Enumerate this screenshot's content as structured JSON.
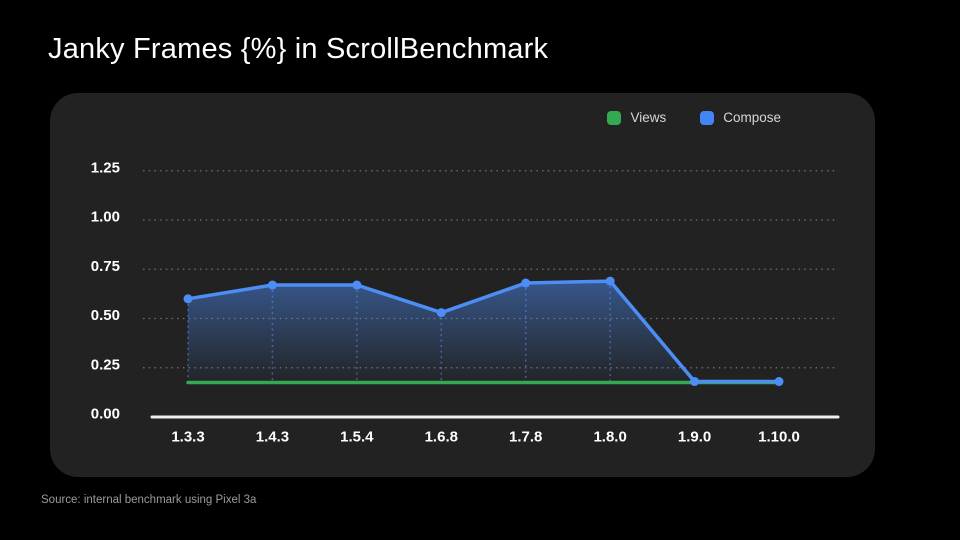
{
  "page": {
    "title": "Janky Frames {%} in ScrollBenchmark",
    "source_note": "Source: internal benchmark using Pixel 3a",
    "background_color": "#000000",
    "panel_color": "#222222"
  },
  "legend": {
    "items": [
      {
        "label": "Views",
        "color": "#34A853"
      },
      {
        "label": "Compose",
        "color": "#4285F4"
      }
    ]
  },
  "chart_data": {
    "type": "line",
    "title": "Janky Frames {%} in ScrollBenchmark",
    "categories": [
      "1.3.3",
      "1.4.3",
      "1.5.4",
      "1.6.8",
      "1.7.8",
      "1.8.0",
      "1.9.0",
      "1.10.0"
    ],
    "series": [
      {
        "name": "Views",
        "color": "#34A853",
        "style": "flat line, no markers, no fill",
        "values": [
          0.175,
          0.175,
          0.175,
          0.175,
          0.175,
          0.175,
          0.175,
          0.175
        ]
      },
      {
        "name": "Compose",
        "color": "#4C8DF6",
        "style": "line with round markers, gradient area fill, dotted vertical point guides",
        "values": [
          0.6,
          0.67,
          0.67,
          0.53,
          0.68,
          0.69,
          0.18,
          0.18
        ]
      }
    ],
    "xlabel": "",
    "ylabel": "",
    "ylim": [
      0,
      1.25
    ],
    "yticks": [
      0,
      0.25,
      0.5,
      0.75,
      1.0,
      1.25
    ],
    "ytick_labels": [
      "0.00",
      "0.25",
      "0.50",
      "0.75",
      "1.00",
      "1.25"
    ],
    "grid": "horizontal dotted gridlines, solid x-axis baseline",
    "legend_position": "top-right"
  }
}
